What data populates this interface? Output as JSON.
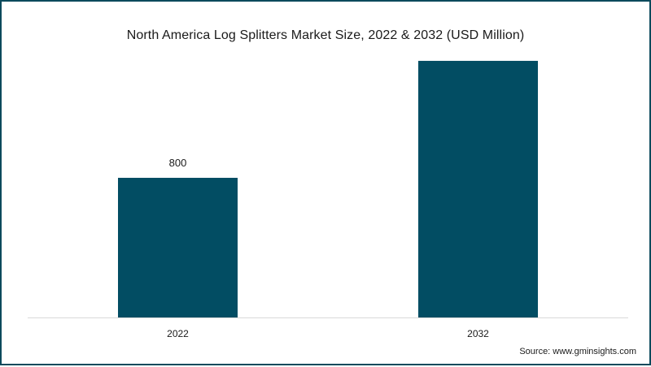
{
  "chart_data": {
    "type": "bar",
    "title": "North America Log Splitters Market Size, 2022 & 2032 (USD Million)",
    "categories": [
      "2022",
      "2032"
    ],
    "values": [
      800,
      1470
    ],
    "data_labels": [
      "800",
      ""
    ],
    "xlabel": "",
    "ylabel": "",
    "ylim": [
      0,
      1600
    ],
    "grid": false,
    "legend": "none",
    "bar_color": "#024d63"
  },
  "source": "Source: www.gminsights.com"
}
